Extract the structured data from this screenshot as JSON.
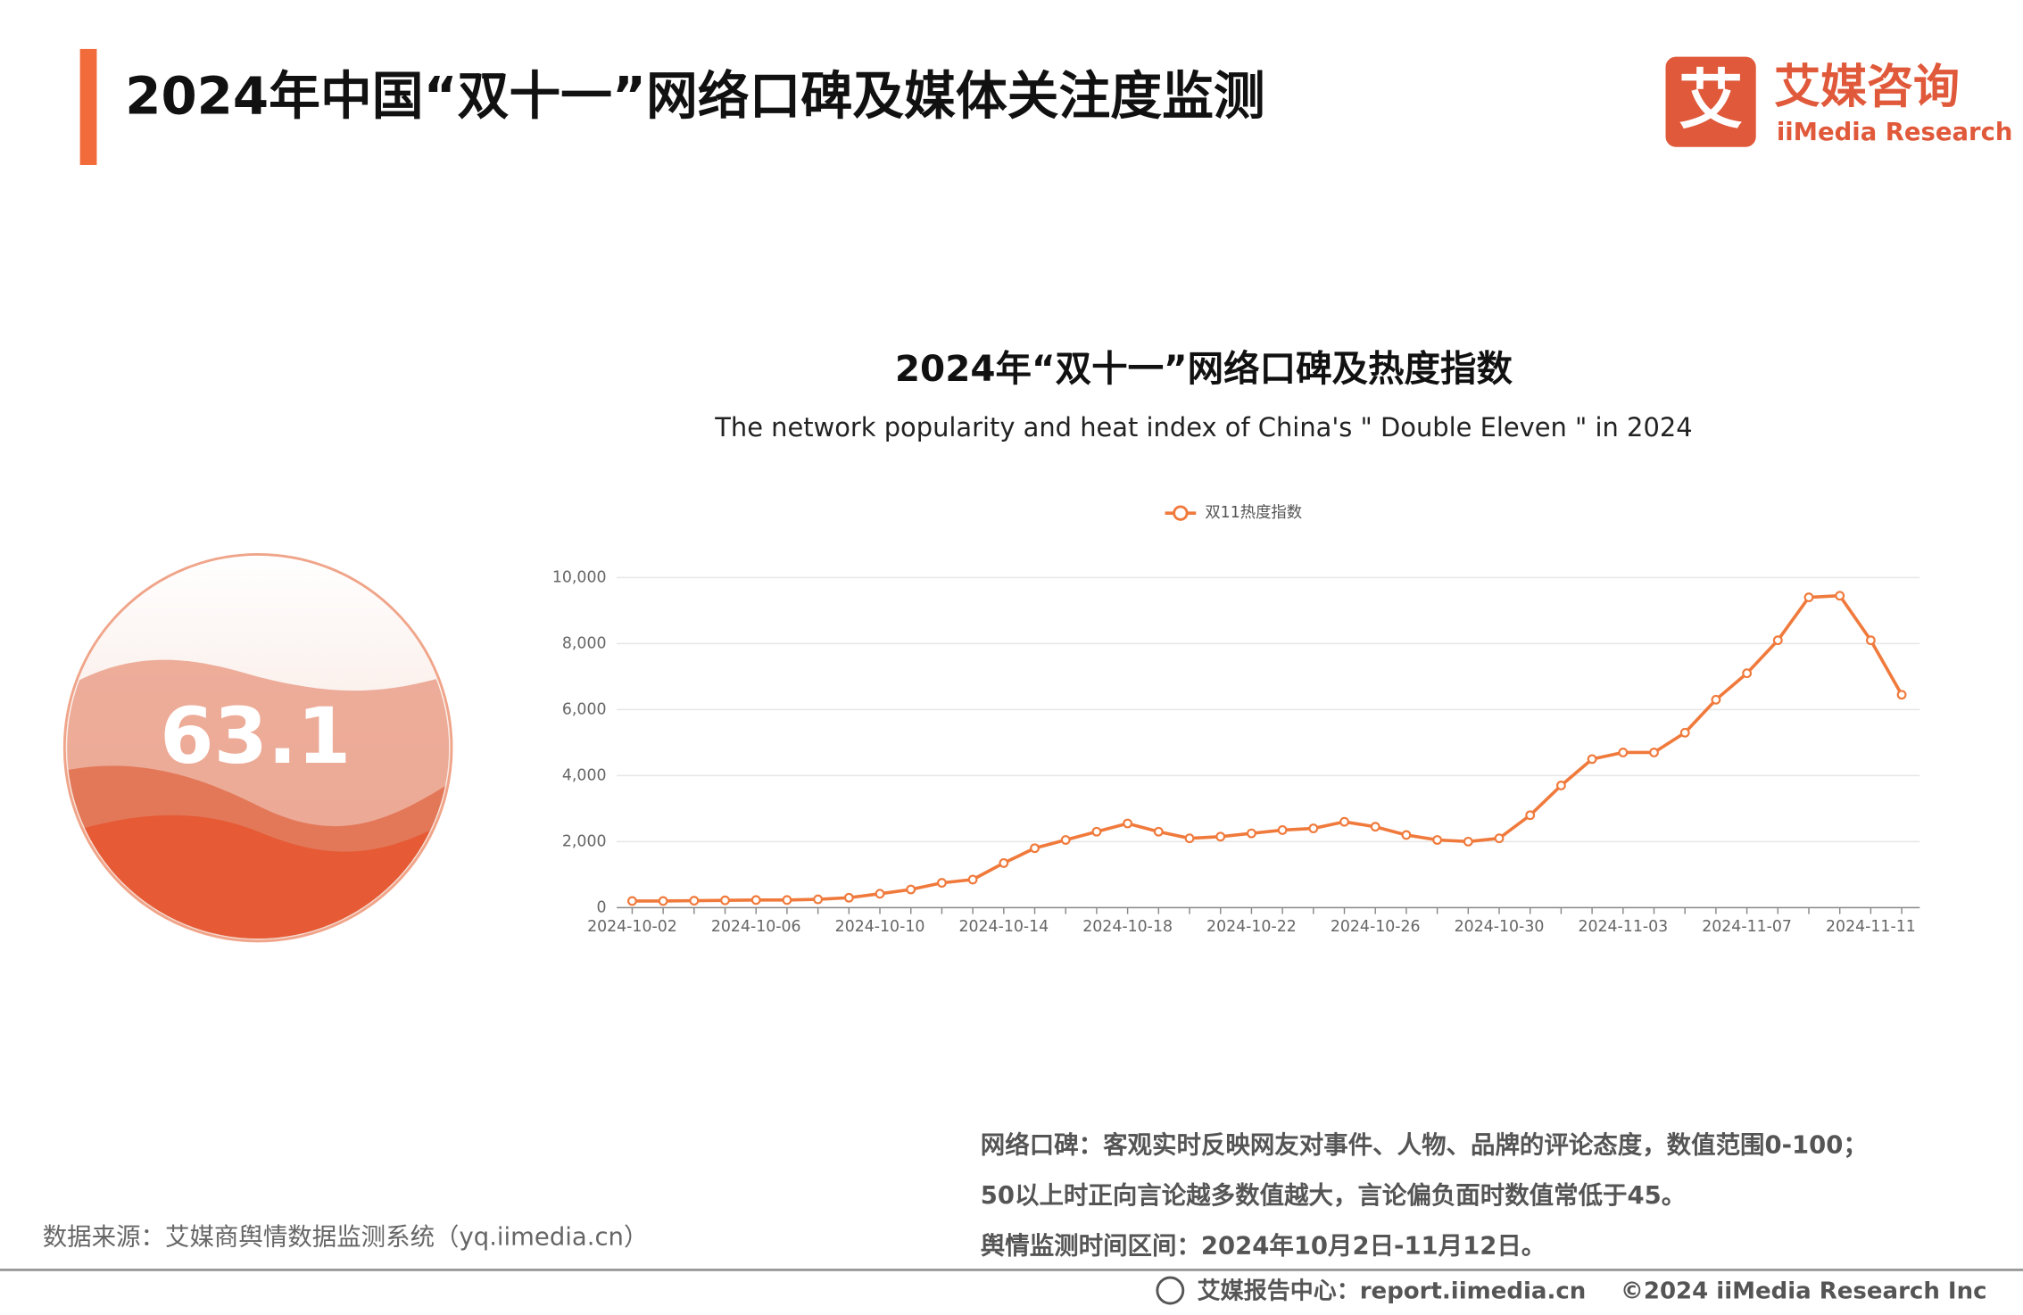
{
  "header": {
    "title": "2024年中国“双十一”网络口碑及媒体关注度监测",
    "logo_cn": "艾媒咨询",
    "logo_en": "iiMedia Research",
    "logo_mark": "艾"
  },
  "gauge": {
    "value": 63.1
  },
  "chart_data": {
    "type": "line",
    "title": "2024年“双十一”网络口碑及热度指数",
    "subtitle": "The network popularity and heat index of China's \" Double Eleven \" in 2024",
    "categories": [
      "2024-10-02",
      null,
      null,
      null,
      "2024-10-06",
      null,
      null,
      null,
      "2024-10-10",
      null,
      null,
      null,
      "2024-10-14",
      null,
      null,
      null,
      "2024-10-18",
      null,
      null,
      null,
      "2024-10-22",
      null,
      null,
      null,
      "2024-10-26",
      null,
      null,
      null,
      "2024-10-30",
      null,
      null,
      null,
      "2024-11-03",
      null,
      null,
      null,
      "2024-11-07",
      null,
      null,
      null,
      "2024-11-11",
      null
    ],
    "series": [
      {
        "name": "双11热度指数",
        "color": "#f07a3c",
        "values": [
          200,
          200,
          210,
          220,
          230,
          230,
          250,
          300,
          420,
          550,
          750,
          850,
          1350,
          1800,
          2050,
          2300,
          2550,
          2300,
          2100,
          2150,
          2250,
          2350,
          2400,
          2600,
          2450,
          2200,
          2050,
          2000,
          2100,
          2800,
          3700,
          4500,
          4700,
          4700,
          5300,
          6300,
          7100,
          8100,
          9400,
          9450,
          8100,
          6450
        ]
      }
    ],
    "ylim": [
      0,
      10000
    ],
    "yticks": [
      0,
      {
        "value": 2000,
        "label": "2,000"
      },
      {
        "value": 4000,
        "label": "4,000"
      },
      {
        "value": 6000,
        "label": "6,000"
      },
      {
        "value": 8000,
        "label": "8,000"
      },
      {
        "value": 10000,
        "label": "10,000"
      }
    ],
    "grid": true,
    "legend": "top"
  },
  "notes": [
    "网络口碑：客观实时反映网友对事件、人物、品牌的评论态度，数值范围0-100；",
    "50以上时正向言论越多数值越大，言论偏负面时数值常低于45。",
    "舆情监测时间区间：2024年10月2日-11月12日。"
  ],
  "source": "数据来源：艾媒商舆情数据监测系统（yq.iimedia.cn）",
  "footer": {
    "center": "艾媒报告中心：report.iimedia.cn",
    "copyright": "©2024  iiMedia Research  Inc"
  }
}
